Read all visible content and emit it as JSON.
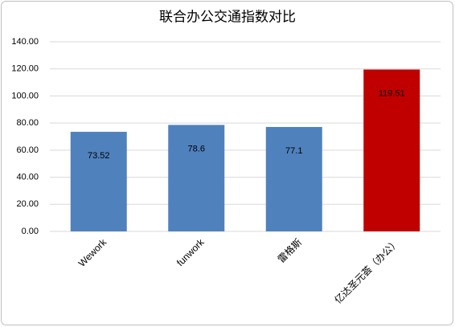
{
  "chart_data": {
    "type": "bar",
    "title": "联合办公交通指数对比",
    "categories": [
      "Wework",
      "funwork",
      "雷格斯",
      "亿达圣元荟（办公）"
    ],
    "values": [
      73.52,
      78.6,
      77.1,
      119.51
    ],
    "colors": [
      "#4f81bd",
      "#4f81bd",
      "#4f81bd",
      "#c00000"
    ],
    "ylim": [
      0,
      140
    ],
    "yticks": [
      {
        "value": 0,
        "label": "0.00"
      },
      {
        "value": 20,
        "label": "20.00"
      },
      {
        "value": 40,
        "label": "40.00"
      },
      {
        "value": 60,
        "label": "60.00"
      },
      {
        "value": 80,
        "label": "80.00"
      },
      {
        "value": 100,
        "label": "100.00"
      },
      {
        "value": 120,
        "label": "120.00"
      },
      {
        "value": 140,
        "label": "140.00"
      }
    ],
    "grid": true
  }
}
